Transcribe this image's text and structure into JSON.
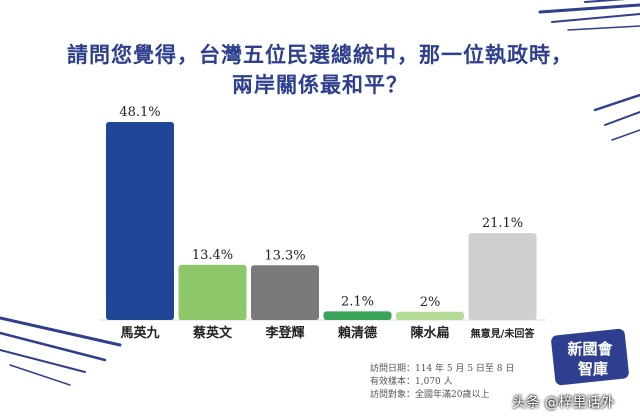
{
  "title": {
    "line1": "請問您覺得，台灣五位民選總統中，那一位執政時，",
    "line2": "兩岸關係最和平？"
  },
  "chart_data": {
    "type": "bar",
    "categories": [
      "馬英九",
      "蔡英文",
      "李登輝",
      "賴清德",
      "陳水扁",
      "無意見/未回答"
    ],
    "values": [
      48.1,
      13.4,
      13.3,
      2.1,
      2,
      21.1
    ],
    "value_labels": [
      "48.1%",
      "13.4%",
      "13.3%",
      "2.1%",
      "2%",
      "21.1%"
    ],
    "colors": [
      "#1f4596",
      "#8cc86a",
      "#7a7a7a",
      "#3aa35a",
      "#b5dc97",
      "#cfcfcf"
    ],
    "ylim": [
      0,
      50
    ]
  },
  "footer": {
    "date": "訪問日期：114 年 5 月 5 日至 8 日",
    "sample": "有效樣本：1,070 人",
    "target": "訪問對象：全國年滿20歲以上"
  },
  "brand": {
    "line1": "新國會",
    "line2": "智庫"
  },
  "watermark": "头条 @梓里话外"
}
